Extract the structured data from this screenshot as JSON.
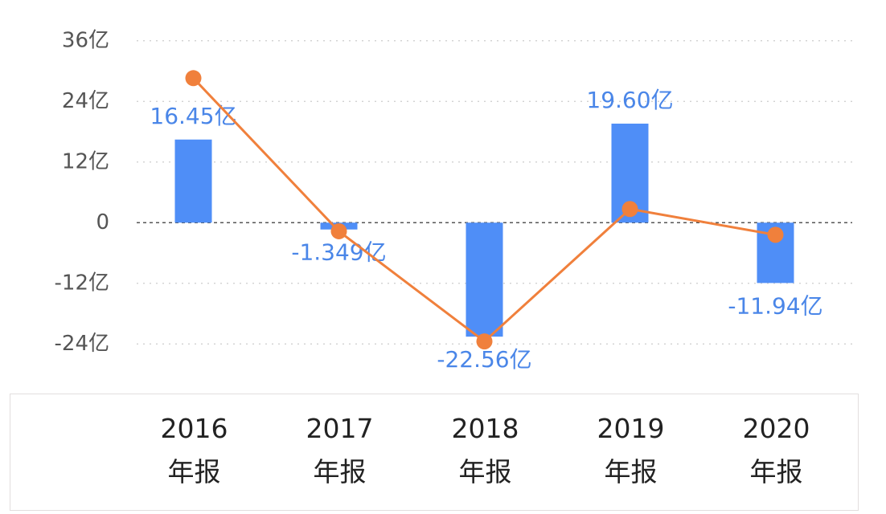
{
  "chart_data": {
    "type": "bar",
    "categories": [
      "2016 年报",
      "2017 年报",
      "2018 年报",
      "2019 年报",
      "2020 年报"
    ],
    "series": [
      {
        "type": "bar",
        "color": "#4f8ef7",
        "values": [
          16.45,
          -1.349,
          -22.56,
          19.6,
          -11.94
        ],
        "value_labels": [
          "16.45亿",
          "-1.349亿",
          "-22.56亿",
          "19.60亿",
          "-11.94亿"
        ]
      },
      {
        "type": "line",
        "color": "#f0803c",
        "values": [
          28.6,
          -1.7,
          -23.5,
          2.7,
          -2.4
        ]
      }
    ],
    "ylim": [
      -30,
      42
    ],
    "yticks": [
      {
        "value": -24,
        "label": "-24亿"
      },
      {
        "value": -12,
        "label": "-12亿"
      },
      0,
      {
        "value": 12,
        "label": "12亿"
      },
      {
        "value": 24,
        "label": "24亿"
      },
      {
        "value": 36,
        "label": "36亿"
      }
    ],
    "grid": true
  }
}
